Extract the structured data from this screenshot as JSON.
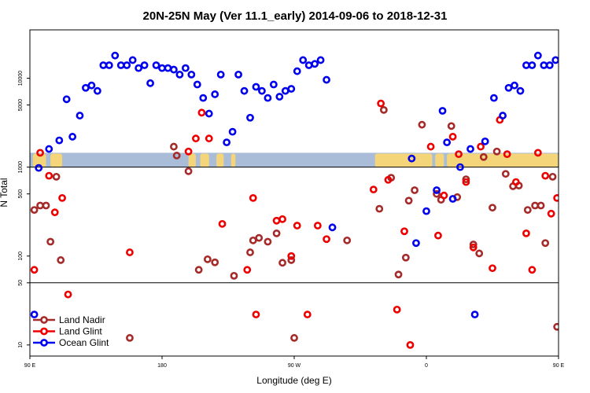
{
  "chart_data": {
    "type": "scatter",
    "title": "20N-25N May (Ver 11.1_early)   2014-09-06 to 2018-12-31",
    "xlabel": "Longitude (deg E)",
    "ylabel": "N Total",
    "y_scale": "log",
    "xlim": [
      90,
      450
    ],
    "ylim": [
      7.5,
      35000
    ],
    "x_ticks": [
      {
        "value": 90,
        "label": "90 E"
      },
      {
        "value": 180,
        "label": "180"
      },
      {
        "value": 270,
        "label": "90 W"
      },
      {
        "value": 360,
        "label": "0"
      },
      {
        "value": 450,
        "label": "90 E"
      },
      {
        "value": 540,
        "label": "180"
      }
    ],
    "x_ticks_note": "",
    "y_ticks": [
      {
        "value": 10,
        "label": "10"
      },
      {
        "value": 50,
        "label": "50"
      },
      {
        "value": 100,
        "label": "100"
      },
      {
        "value": 500,
        "label": "500"
      },
      {
        "value": 1000,
        "label": "1000"
      },
      {
        "value": 5000,
        "label": "5000"
      },
      {
        "value": 10000,
        "label": "10000"
      }
    ],
    "reference_lines": [
      50,
      1000
    ],
    "map_strip": {
      "ocean_color": "#a9bcd8",
      "land_color": "#f5d57a"
    },
    "legend": {
      "position": "bottom-left"
    },
    "series": [
      {
        "name": "Land Nadir",
        "color": "#a52a2a",
        "points": [
          [
            93,
            330
          ],
          [
            97,
            370
          ],
          [
            101,
            370
          ],
          [
            104,
            145
          ],
          [
            108,
            780
          ],
          [
            111,
            90
          ],
          [
            158,
            12
          ],
          [
            188,
            1700
          ],
          [
            190,
            1350
          ],
          [
            198,
            900
          ],
          [
            205,
            70
          ],
          [
            211,
            92
          ],
          [
            216,
            85
          ],
          [
            229,
            60
          ],
          [
            240,
            110
          ],
          [
            242,
            150
          ],
          [
            246,
            160
          ],
          [
            252,
            145
          ],
          [
            258,
            180
          ],
          [
            262,
            84
          ],
          [
            268,
            90
          ],
          [
            270,
            12
          ],
          [
            306,
            150
          ],
          [
            328,
            340
          ],
          [
            331,
            4400
          ],
          [
            336,
            760
          ],
          [
            341,
            62
          ],
          [
            346,
            96
          ],
          [
            348,
            420
          ],
          [
            352,
            550
          ],
          [
            357,
            3000
          ],
          [
            367,
            500
          ],
          [
            370,
            430
          ],
          [
            377,
            2900
          ],
          [
            381,
            460
          ],
          [
            387,
            730
          ],
          [
            392,
            135
          ],
          [
            396,
            107
          ],
          [
            399,
            1300
          ],
          [
            405,
            350
          ],
          [
            408,
            1500
          ],
          [
            414,
            840
          ],
          [
            419,
            610
          ],
          [
            423,
            620
          ],
          [
            429,
            330
          ],
          [
            434,
            370
          ],
          [
            438,
            370
          ],
          [
            441,
            140
          ],
          [
            446,
            780
          ],
          [
            449,
            16
          ],
          [
            453,
            92
          ]
        ]
      },
      {
        "name": "Land Glint",
        "color": "#ee0000",
        "points": [
          [
            93,
            70
          ],
          [
            97,
            1450
          ],
          [
            103,
            800
          ],
          [
            107,
            310
          ],
          [
            112,
            450
          ],
          [
            116,
            37
          ],
          [
            158,
            110
          ],
          [
            198,
            1500
          ],
          [
            203,
            2100
          ],
          [
            207,
            4100
          ],
          [
            212,
            2100
          ],
          [
            221,
            230
          ],
          [
            238,
            70
          ],
          [
            242,
            450
          ],
          [
            244,
            22
          ],
          [
            258,
            250
          ],
          [
            262,
            260
          ],
          [
            268,
            100
          ],
          [
            272,
            220
          ],
          [
            279,
            22
          ],
          [
            286,
            220
          ],
          [
            292,
            155
          ],
          [
            324,
            560
          ],
          [
            329,
            5200
          ],
          [
            334,
            720
          ],
          [
            340,
            25
          ],
          [
            345,
            190
          ],
          [
            349,
            10
          ],
          [
            363,
            1700
          ],
          [
            368,
            170
          ],
          [
            372,
            480
          ],
          [
            378,
            2200
          ],
          [
            382,
            1400
          ],
          [
            387,
            680
          ],
          [
            392,
            125
          ],
          [
            397,
            1700
          ],
          [
            405,
            73
          ],
          [
            410,
            3400
          ],
          [
            415,
            1400
          ],
          [
            421,
            680
          ],
          [
            428,
            180
          ],
          [
            432,
            70
          ],
          [
            436,
            1450
          ],
          [
            441,
            800
          ],
          [
            445,
            300
          ],
          [
            449,
            450
          ],
          [
            453,
            37
          ]
        ]
      },
      {
        "name": "Ocean Glint",
        "color": "#0000ee",
        "points": [
          [
            93,
            22
          ],
          [
            96,
            980
          ],
          [
            103,
            1600
          ],
          [
            110,
            2000
          ],
          [
            115,
            5800
          ],
          [
            119,
            2200
          ],
          [
            124,
            3800
          ],
          [
            128,
            7800
          ],
          [
            132,
            8300
          ],
          [
            136,
            7200
          ],
          [
            140,
            14000
          ],
          [
            144,
            14000
          ],
          [
            148,
            18000
          ],
          [
            152,
            14000
          ],
          [
            156,
            14000
          ],
          [
            160,
            16000
          ],
          [
            164,
            13000
          ],
          [
            168,
            14000
          ],
          [
            172,
            8800
          ],
          [
            176,
            14000
          ],
          [
            180,
            13000
          ],
          [
            184,
            13000
          ],
          [
            188,
            12500
          ],
          [
            192,
            11000
          ],
          [
            196,
            13000
          ],
          [
            200,
            11000
          ],
          [
            204,
            8500
          ],
          [
            208,
            6000
          ],
          [
            212,
            4000
          ],
          [
            216,
            6600
          ],
          [
            220,
            11000
          ],
          [
            224,
            1900
          ],
          [
            228,
            2500
          ],
          [
            232,
            11000
          ],
          [
            236,
            7200
          ],
          [
            240,
            3600
          ],
          [
            244,
            8000
          ],
          [
            248,
            7200
          ],
          [
            252,
            6000
          ],
          [
            256,
            8500
          ],
          [
            260,
            6200
          ],
          [
            264,
            7200
          ],
          [
            268,
            7600
          ],
          [
            272,
            12000
          ],
          [
            276,
            16000
          ],
          [
            280,
            14000
          ],
          [
            284,
            14500
          ],
          [
            288,
            16000
          ],
          [
            292,
            9600
          ],
          [
            296,
            210
          ],
          [
            350,
            1250
          ],
          [
            353,
            140
          ],
          [
            360,
            320
          ],
          [
            367,
            550
          ],
          [
            371,
            4300
          ],
          [
            374,
            1900
          ],
          [
            378,
            440
          ],
          [
            383,
            1000
          ],
          [
            390,
            1600
          ],
          [
            393,
            22
          ],
          [
            400,
            1950
          ],
          [
            406,
            6000
          ],
          [
            412,
            3800
          ],
          [
            416,
            7800
          ],
          [
            420,
            8300
          ],
          [
            424,
            7200
          ],
          [
            428,
            14000
          ],
          [
            432,
            14000
          ],
          [
            436,
            18000
          ],
          [
            440,
            14000
          ],
          [
            444,
            14000
          ],
          [
            448,
            16000
          ]
        ]
      }
    ]
  }
}
